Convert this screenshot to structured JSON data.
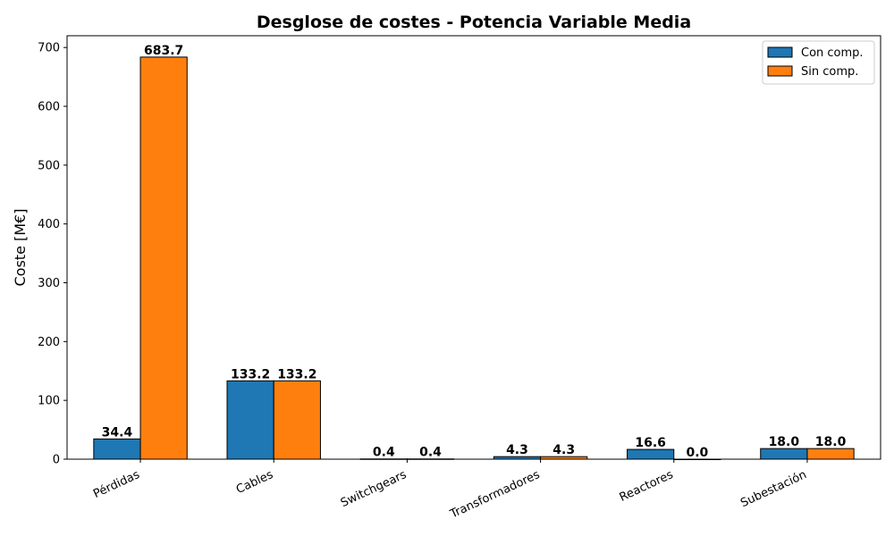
{
  "chart_data": {
    "type": "bar",
    "title": "Desglose de costes - Potencia Variable Media",
    "xlabel": "",
    "ylabel": "Coste [M€]",
    "categories": [
      "Pérdidas",
      "Cables",
      "Switchgears",
      "Transformadores",
      "Reactores",
      "Subestación"
    ],
    "series": [
      {
        "name": "Con comp.",
        "color": "#1f77b4",
        "values": [
          34.4,
          133.2,
          0.4,
          4.3,
          16.6,
          18.0
        ]
      },
      {
        "name": "Sin comp.",
        "color": "#ff7f0e",
        "values": [
          683.7,
          133.2,
          0.4,
          4.3,
          0.0,
          18.0
        ]
      }
    ],
    "ylim": [
      0,
      720
    ],
    "yticks": [
      0,
      100,
      200,
      300,
      400,
      500,
      600,
      700
    ],
    "grid": false,
    "legend_position": "top-right",
    "data_labels": true,
    "data_label_decimals": 1,
    "x_tick_rotation_deg": 25
  }
}
